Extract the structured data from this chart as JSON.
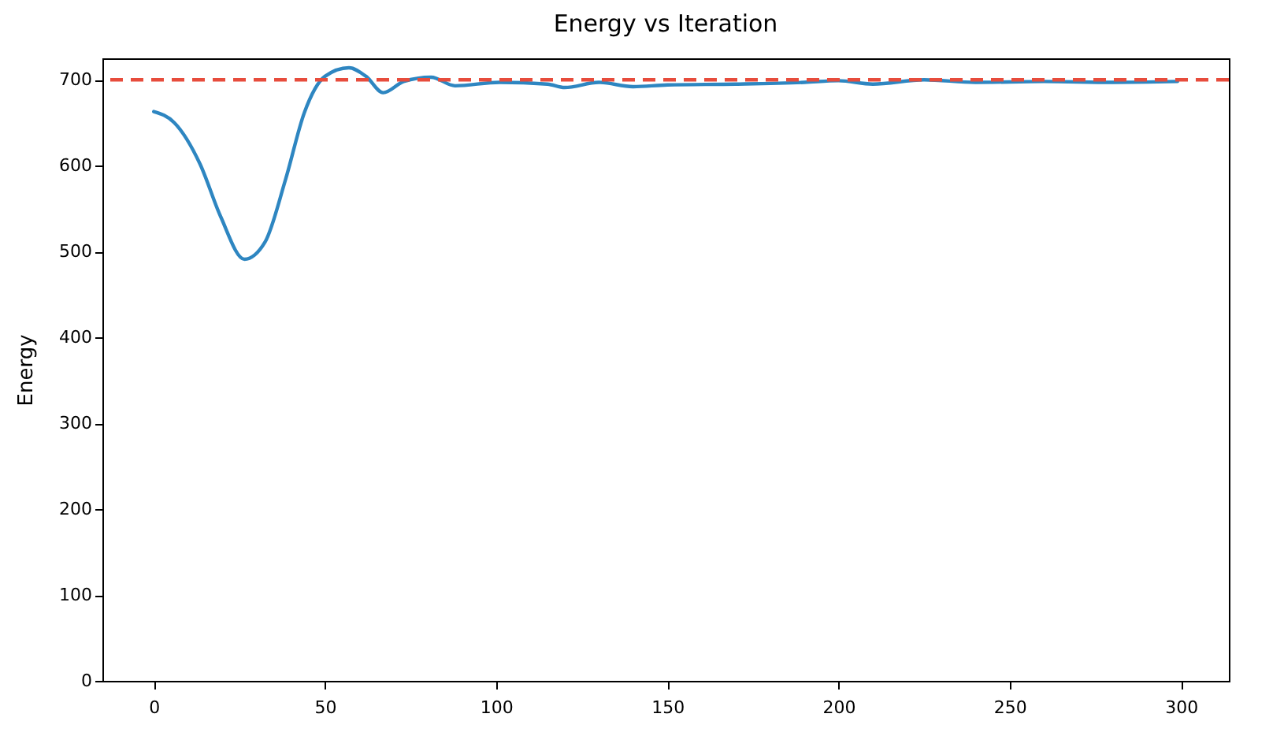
{
  "chart_data": {
    "type": "line",
    "title": "Energy vs Iteration",
    "ylabel": "Energy",
    "x": [
      0,
      6,
      13.5,
      19.5,
      26.5,
      32.5,
      38.5,
      44,
      50,
      57,
      62,
      67,
      73,
      81,
      88,
      101,
      115,
      120,
      130,
      140,
      150,
      170,
      190,
      200,
      210,
      225,
      240,
      260,
      280,
      299
    ],
    "series": [
      {
        "color": "#2e86c1",
        "values": [
          663,
          650,
          602,
          541,
          491,
          511,
          584,
          662,
          704,
          714,
          704,
          685,
          698,
          703,
          693,
          697,
          695,
          691,
          697,
          692,
          694,
          695,
          697,
          699,
          695,
          700,
          697,
          698,
          697,
          698
        ]
      }
    ],
    "xlim": [
      -15,
      314
    ],
    "ylim": [
      0,
      725
    ],
    "xticks": [
      0,
      50,
      100,
      150,
      200,
      250,
      300
    ],
    "yticks": [
      0,
      100,
      200,
      300,
      400,
      500,
      600,
      700
    ],
    "ref_lines": [
      {
        "axis": "y",
        "value": 700,
        "color": "#e74c3c",
        "line_style": "dashed"
      }
    ],
    "grid": false,
    "line_style": "solid"
  }
}
